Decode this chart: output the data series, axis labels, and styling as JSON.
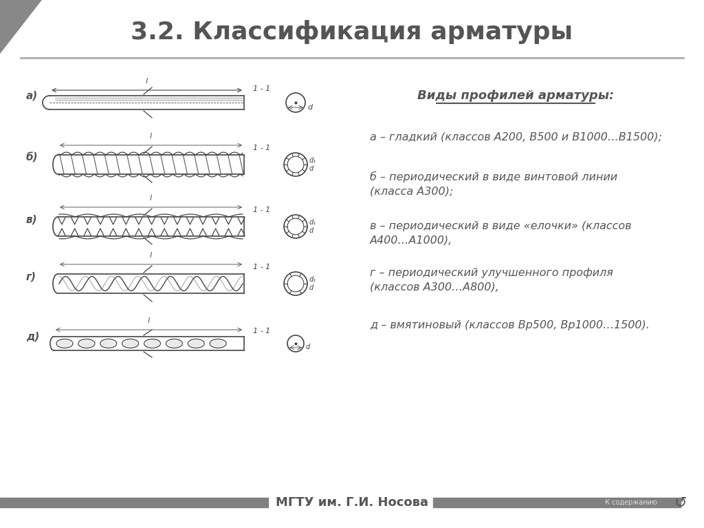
{
  "title": "3.2. Классификация арматуры",
  "title_fontsize": 26,
  "title_color": "#555555",
  "bg_color": "#ffffff",
  "footer_text": "МГТУ им. Г.И. Носова",
  "footer_color": "#555555",
  "footer_bar_color": "#808080",
  "right_panel_header": "Виды профилей арматуры:",
  "right_panel_items": [
    "а – гладкий (классов А200, В500 и В1000…В1500);",
    "б – периодический в виде винтовой линии\n(класса А300);",
    "в – периодический в виде «елочки» (классов\nА400…А1000),",
    "г – периодический улучшенного профиля\n(классов А300…А800),",
    "д – вмятиновый (классов Вр500, Вр1000…1500)."
  ],
  "left_labels": [
    "а)",
    "б)",
    "в)",
    "г)",
    "д)"
  ],
  "corner_triangle_color": "#888888",
  "text_color": "#555555"
}
